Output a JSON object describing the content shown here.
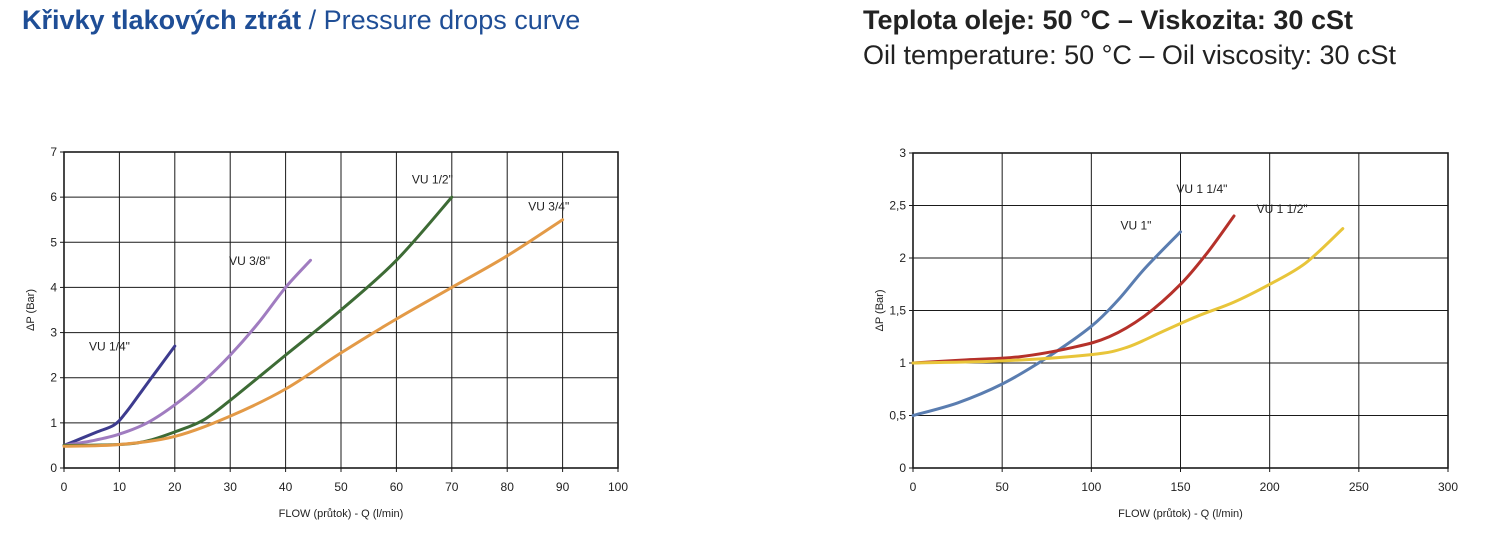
{
  "header": {
    "title_bold": "Křivky tlakových ztrát",
    "title_rest": " / Pressure drops curve",
    "conditions_cz": "Teplota oleje: 50 °C – Viskozita: 30 cSt",
    "conditions_en": "Oil temperature: 50 °C – Oil viscosity: 30 cSt"
  },
  "chart_data": [
    {
      "type": "line",
      "xlabel": "FLOW (průtok) - Q (l/min)",
      "ylabel": "ΔP (Bar)",
      "xlim": [
        0,
        100
      ],
      "ylim": [
        0,
        7
      ],
      "xticks": [
        0,
        10,
        20,
        30,
        40,
        50,
        60,
        70,
        80,
        90,
        100
      ],
      "xtick_labels": [
        "0",
        "10",
        "20",
        "30",
        "40",
        "50",
        "60",
        "70",
        "80",
        "90",
        "100"
      ],
      "yticks": [
        0,
        1,
        2,
        3,
        4,
        5,
        6,
        7
      ],
      "ytick_labels": [
        "0",
        "1",
        "2",
        "3",
        "4",
        "5",
        "6",
        "7"
      ],
      "grid": true,
      "series": [
        {
          "name": "VU 1/4\"",
          "color": "#3d3b8e",
          "x": [
            0,
            3,
            6,
            9,
            11,
            14,
            17,
            20
          ],
          "y": [
            0.5,
            0.65,
            0.8,
            0.95,
            1.2,
            1.7,
            2.2,
            2.7
          ]
        },
        {
          "name": "VU 3/8\"",
          "color": "#a07cc0",
          "x": [
            0,
            5,
            10,
            15,
            20,
            25,
            30,
            35,
            40,
            44.5
          ],
          "y": [
            0.5,
            0.6,
            0.75,
            1.0,
            1.4,
            1.9,
            2.5,
            3.2,
            4.0,
            4.6
          ]
        },
        {
          "name": "VU 1/2\"",
          "color": "#3d6b35",
          "x": [
            0,
            10,
            15,
            20,
            25,
            30,
            40,
            50,
            60,
            70
          ],
          "y": [
            0.5,
            0.52,
            0.6,
            0.8,
            1.05,
            1.5,
            2.5,
            3.5,
            4.6,
            6.0
          ]
        },
        {
          "name": "VU 3/4\"",
          "color": "#e39a47",
          "x": [
            0,
            10,
            20,
            30,
            40,
            50,
            60,
            70,
            80,
            90
          ],
          "y": [
            0.48,
            0.52,
            0.7,
            1.15,
            1.75,
            2.55,
            3.3,
            4.0,
            4.7,
            5.5
          ]
        }
      ],
      "annotations": [
        {
          "text": "VU 1/4\"",
          "x": 8.2,
          "y": 2.6
        },
        {
          "text": "VU 3/8\"",
          "x": 33.5,
          "y": 4.5
        },
        {
          "text": "VU 1/2\"",
          "x": 66.5,
          "y": 6.3
        },
        {
          "text": "VU  3/4\"",
          "x": 87.5,
          "y": 5.7
        }
      ]
    },
    {
      "type": "line",
      "xlabel": "FLOW (průtok) - Q (l/min)",
      "ylabel": "ΔP (Bar)",
      "xlim": [
        0,
        300
      ],
      "ylim": [
        0,
        3
      ],
      "xticks": [
        0,
        50,
        100,
        150,
        200,
        250,
        300
      ],
      "xtick_labels": [
        "0",
        "50",
        "100",
        "150",
        "200",
        "250",
        "300"
      ],
      "yticks": [
        0,
        0.5,
        1,
        1.5,
        2,
        2.5,
        3
      ],
      "ytick_labels": [
        "0",
        "0,5",
        "1",
        "1,5",
        "2",
        "2,5",
        "3"
      ],
      "grid": true,
      "series": [
        {
          "name": "VU 1\"",
          "color": "#5a7db0",
          "x": [
            0,
            25,
            50,
            75,
            100,
            115,
            130,
            150
          ],
          "y": [
            0.5,
            0.62,
            0.8,
            1.05,
            1.35,
            1.6,
            1.9,
            2.25
          ]
        },
        {
          "name": "VU 1 1/4\"",
          "color": "#b5312a",
          "x": [
            0,
            30,
            60,
            90,
            110,
            130,
            150,
            165,
            180
          ],
          "y": [
            1.0,
            1.03,
            1.06,
            1.15,
            1.25,
            1.45,
            1.75,
            2.05,
            2.4
          ]
        },
        {
          "name": "VU 1 1/2\"",
          "color": "#e8c53a",
          "x": [
            0,
            50,
            100,
            120,
            140,
            160,
            180,
            200,
            220,
            241
          ],
          "y": [
            1.0,
            1.02,
            1.08,
            1.15,
            1.3,
            1.45,
            1.58,
            1.75,
            1.95,
            2.28
          ]
        }
      ],
      "annotations": [
        {
          "text": "VU 1\"",
          "x": 125,
          "y": 2.27
        },
        {
          "text": "VU 1 1/4\"",
          "x": 162,
          "y": 2.62
        },
        {
          "text": "VU 1 1/2\"",
          "x": 207,
          "y": 2.43
        }
      ]
    }
  ]
}
